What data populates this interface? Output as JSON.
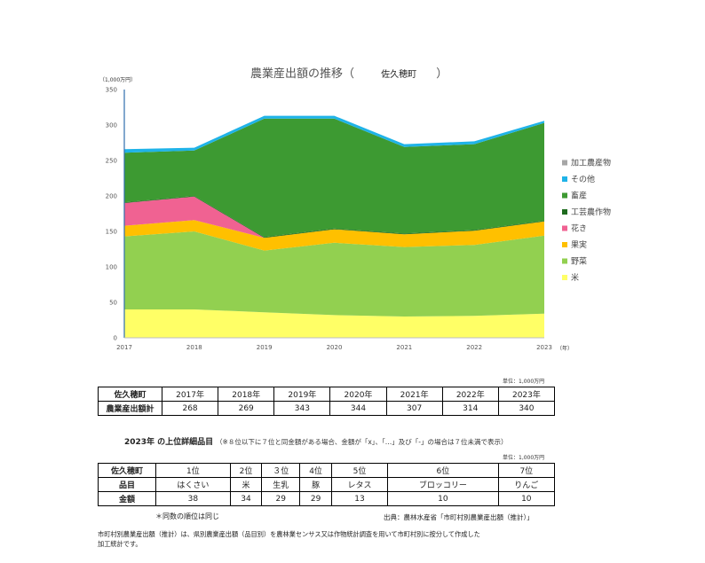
{
  "chart_data": {
    "type": "area",
    "stacked": true,
    "title": "農業産出額の推移（　　　佐久穂町　　）",
    "title_main": "農業産出額の推移（",
    "title_town": "佐久穂町",
    "title_close": "）",
    "y_unit": "（1,000万円）",
    "x_unit": "（年）",
    "x": [
      2017,
      2018,
      2019,
      2020,
      2021,
      2022,
      2023
    ],
    "ylim": [
      0,
      350
    ],
    "yticks": [
      0,
      50,
      100,
      150,
      200,
      250,
      300,
      350
    ],
    "grid": false,
    "legend_position": "right",
    "series": [
      {
        "name": "米",
        "color": "#ffff66",
        "values": [
          40,
          40,
          36,
          32,
          30,
          31,
          34
        ]
      },
      {
        "name": "野菜",
        "color": "#92d050",
        "values": [
          103,
          110,
          87,
          102,
          98,
          100,
          110
        ]
      },
      {
        "name": "果実",
        "color": "#ffc000",
        "values": [
          15,
          16,
          18,
          19,
          18,
          20,
          20
        ]
      },
      {
        "name": "花き",
        "color": "#f06292",
        "values": [
          32,
          33,
          0,
          0,
          0,
          0,
          0
        ]
      },
      {
        "name": "工芸農作物",
        "color": "#1e6b1e",
        "values": [
          1,
          1,
          1,
          1,
          1,
          1,
          1
        ]
      },
      {
        "name": "畜産",
        "color": "#3d9a32",
        "values": [
          70,
          64,
          167,
          155,
          122,
          121,
          138
        ]
      },
      {
        "name": "その他",
        "color": "#1fb3e8",
        "values": [
          5,
          4,
          4,
          4,
          4,
          4,
          3
        ]
      },
      {
        "name": "加工農産物",
        "color": "#a6a6a6",
        "values": [
          0,
          0,
          0,
          0,
          0,
          0,
          0
        ]
      }
    ]
  },
  "table1": {
    "unit": "単位：1,000万円",
    "header": [
      "佐久穂町",
      "2017年",
      "2018年",
      "2019年",
      "2020年",
      "2021年",
      "2022年",
      "2023年"
    ],
    "row": [
      "農業産出額計",
      "268",
      "269",
      "343",
      "344",
      "307",
      "314",
      "340"
    ]
  },
  "section2": {
    "title": "2023年 の上位詳細品目",
    "note": "（※８位以下に７位と同金額がある場合、金額が「x」、「…」及び「-」の場合は７位未満で表示）",
    "unit": "単位：1,000万円"
  },
  "table2": {
    "rows": [
      [
        "佐久穂町",
        "1位",
        "2位",
        "３位",
        "4位",
        "5位",
        "6位",
        "7位"
      ],
      [
        "品目",
        "はくさい",
        "米",
        "生乳",
        "豚",
        "レタス",
        "ブロッコリー",
        "りんご"
      ],
      [
        "金額",
        "38",
        "34",
        "29",
        "29",
        "13",
        "10",
        "10"
      ]
    ]
  },
  "footnotes": {
    "same_rank": "＊同数の順位は同じ",
    "source": "出典：農林水産省「市町村別農業産出額（推計）」",
    "description_line1": "市町村別農業産出額（推計）は、県別農業産出額（品目別）を農林業センサス又は作物統計調査を用いて市町村別に按分して作成した",
    "description_line2": "加工統計です。"
  }
}
